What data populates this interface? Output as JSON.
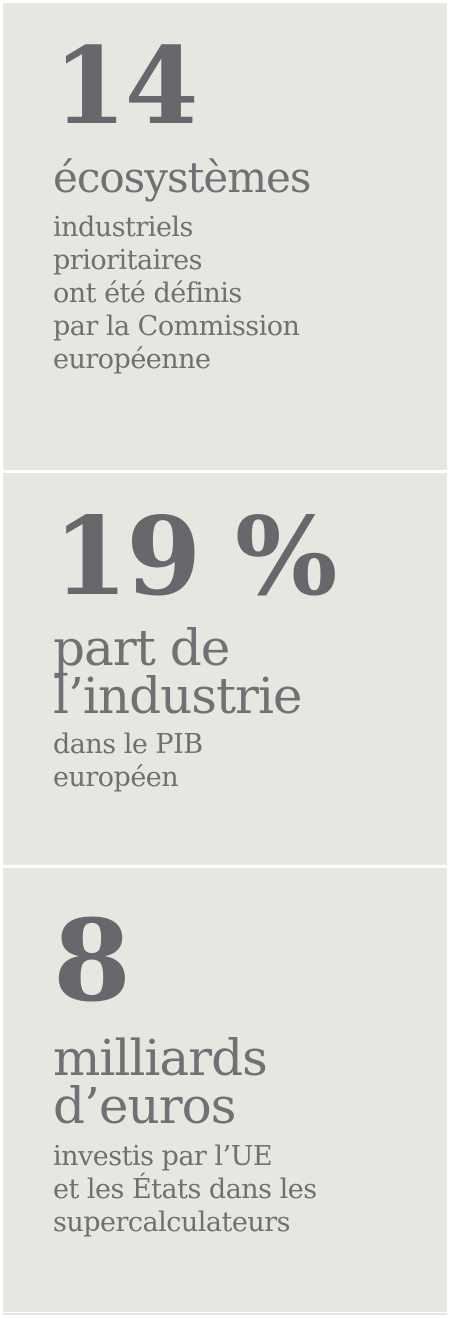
{
  "stats": [
    {
      "number": "14",
      "headline": [
        "écosystèmes"
      ],
      "description": [
        "industriels",
        "prioritaires",
        "ont été définis",
        "par la Commission",
        "européenne"
      ]
    },
    {
      "number": "19 %",
      "headline": [
        "part de",
        "l’industrie"
      ],
      "description": [
        "dans le PIB",
        "européen"
      ]
    },
    {
      "number": "8",
      "headline": [
        "milliards",
        "d’euros"
      ],
      "description": [
        "investis par l’UE",
        "et les États dans les",
        "supercalculateurs"
      ]
    }
  ],
  "colors": {
    "panel_background": "#e8e6e1",
    "text": "#6c6d70"
  }
}
